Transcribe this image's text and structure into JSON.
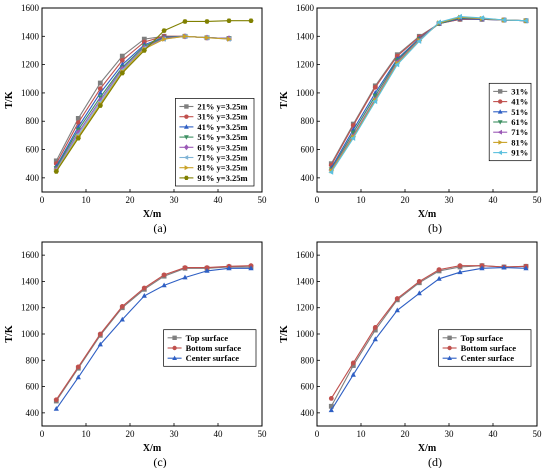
{
  "charts": [
    {
      "type": "line",
      "caption": "(a)",
      "xlabel": "X/m",
      "ylabel": "T/K",
      "xlim": [
        0,
        50
      ],
      "ylim": [
        300,
        1600
      ],
      "xticks": [
        0,
        10,
        20,
        30,
        40,
        50
      ],
      "yticks": [
        400,
        600,
        800,
        1000,
        1200,
        1400,
        1600
      ],
      "legend_position": "lower-right",
      "x": [
        3.25,
        8.25,
        13.25,
        18.25,
        23.25,
        27.75,
        32.5,
        37.5,
        42.5,
        47.5
      ],
      "series": [
        {
          "name": "21% y=3.25m",
          "color": "#7f7f7f",
          "marker": "square",
          "values": [
            520,
            820,
            1070,
            1260,
            1380,
            1400,
            1400,
            1390,
            1385,
            null
          ]
        },
        {
          "name": "31% y=3.25m",
          "color": "#c0504d",
          "marker": "circle",
          "values": [
            500,
            790,
            1030,
            1230,
            1360,
            1400,
            1400,
            1390,
            1385,
            null
          ]
        },
        {
          "name": "41% y=3.25m",
          "color": "#2e5fc4",
          "marker": "triangle-up",
          "values": [
            480,
            760,
            1000,
            1200,
            1340,
            1395,
            1400,
            1390,
            1385,
            null
          ]
        },
        {
          "name": "51% y=3.25m",
          "color": "#3d8f62",
          "marker": "triangle-down",
          "values": [
            470,
            740,
            970,
            1180,
            1330,
            1390,
            1400,
            1390,
            1385,
            null
          ]
        },
        {
          "name": "61% y=3.25m",
          "color": "#9b59b6",
          "marker": "diamond",
          "values": [
            460,
            720,
            950,
            1170,
            1320,
            1385,
            1400,
            1390,
            1385,
            null
          ]
        },
        {
          "name": "71% y=3.25m",
          "color": "#7fb3d5",
          "marker": "triangle-left",
          "values": [
            455,
            705,
            935,
            1160,
            1315,
            1380,
            1400,
            1390,
            1380,
            null
          ]
        },
        {
          "name": "81% y=3.25m",
          "color": "#c9a227",
          "marker": "triangle-right",
          "values": [
            450,
            690,
            920,
            1150,
            1310,
            1380,
            1400,
            1390,
            1380,
            null
          ]
        },
        {
          "name": "91% y=3.25m",
          "color": "#808000",
          "marker": "hexagon",
          "values": [
            445,
            680,
            910,
            1140,
            1300,
            1440,
            1505,
            1505,
            1510,
            1510
          ]
        }
      ]
    },
    {
      "type": "line",
      "caption": "(b)",
      "xlabel": "X/m",
      "ylabel": "T/K",
      "xlim": [
        0,
        50
      ],
      "ylim": [
        300,
        1600
      ],
      "xticks": [
        0,
        10,
        20,
        30,
        40,
        50
      ],
      "yticks": [
        400,
        600,
        800,
        1000,
        1200,
        1400,
        1600
      ],
      "legend_position": "center-right",
      "x": [
        3.25,
        8.25,
        13.25,
        18.25,
        23.25,
        27.75,
        32.5,
        37.5,
        42.5,
        47.5
      ],
      "series": [
        {
          "name": "31%",
          "color": "#7f7f7f",
          "marker": "square",
          "values": [
            500,
            780,
            1050,
            1270,
            1400,
            1490,
            1520,
            1520,
            1515,
            1510
          ]
        },
        {
          "name": "41%",
          "color": "#c0504d",
          "marker": "circle",
          "values": [
            490,
            770,
            1040,
            1260,
            1395,
            1490,
            1520,
            1520,
            1515,
            1510
          ]
        },
        {
          "name": "51%",
          "color": "#2e5fc4",
          "marker": "triangle-up",
          "values": [
            470,
            740,
            1000,
            1240,
            1385,
            1490,
            1525,
            1520,
            1515,
            1510
          ]
        },
        {
          "name": "61%",
          "color": "#3d8f62",
          "marker": "triangle-down",
          "values": [
            460,
            720,
            980,
            1230,
            1380,
            1490,
            1530,
            1525,
            1515,
            1510
          ]
        },
        {
          "name": "71%",
          "color": "#9b59b6",
          "marker": "triangle-left",
          "values": [
            455,
            700,
            960,
            1220,
            1375,
            1495,
            1535,
            1525,
            1515,
            1510
          ]
        },
        {
          "name": "81%",
          "color": "#c9a227",
          "marker": "triangle-right",
          "values": [
            450,
            690,
            950,
            1210,
            1370,
            1495,
            1535,
            1525,
            1515,
            1510
          ]
        },
        {
          "name": "91%",
          "color": "#5bc0de",
          "marker": "triangle-left",
          "values": [
            440,
            680,
            940,
            1200,
            1365,
            1500,
            1540,
            1530,
            1515,
            1510
          ]
        }
      ]
    },
    {
      "type": "line",
      "caption": "(c)",
      "xlabel": "X/m",
      "ylabel": "T/K",
      "xlim": [
        0,
        50
      ],
      "ylim": [
        300,
        1700
      ],
      "xticks": [
        0,
        10,
        20,
        30,
        40,
        50
      ],
      "yticks": [
        400,
        600,
        800,
        1000,
        1200,
        1400,
        1600
      ],
      "legend_position": "center-right",
      "x": [
        3.25,
        8.25,
        13.25,
        18.25,
        23.25,
        27.75,
        32.5,
        37.5,
        42.5,
        47.5
      ],
      "series": [
        {
          "name": "Top surface",
          "color": "#7f7f7f",
          "marker": "square",
          "values": [
            490,
            740,
            990,
            1200,
            1340,
            1440,
            1500,
            1500,
            1510,
            1510
          ]
        },
        {
          "name": "Bottom surface",
          "color": "#c0504d",
          "marker": "circle",
          "values": [
            500,
            750,
            1000,
            1210,
            1350,
            1450,
            1505,
            1505,
            1515,
            1520
          ]
        },
        {
          "name": "Center surface",
          "color": "#2e5fc4",
          "marker": "triangle-up",
          "values": [
            430,
            670,
            920,
            1110,
            1290,
            1370,
            1430,
            1480,
            1500,
            1500
          ]
        }
      ]
    },
    {
      "type": "line",
      "caption": "(d)",
      "xlabel": "X/m",
      "ylabel": "T/K",
      "xlim": [
        0,
        50
      ],
      "ylim": [
        300,
        1700
      ],
      "xticks": [
        0,
        10,
        20,
        30,
        40,
        50
      ],
      "yticks": [
        400,
        600,
        800,
        1000,
        1200,
        1400,
        1600
      ],
      "legend_position": "center-right",
      "x": [
        3.25,
        8.25,
        13.25,
        18.25,
        23.25,
        27.75,
        32.5,
        37.5,
        42.5,
        47.5
      ],
      "series": [
        {
          "name": "Top surface",
          "color": "#7f7f7f",
          "marker": "square",
          "values": [
            450,
            760,
            1030,
            1260,
            1390,
            1480,
            1510,
            1520,
            1510,
            1515
          ]
        },
        {
          "name": "Bottom surface",
          "color": "#c0504d",
          "marker": "circle",
          "values": [
            510,
            780,
            1050,
            1270,
            1400,
            1490,
            1520,
            1520,
            1510,
            1515
          ]
        },
        {
          "name": "Center surface",
          "color": "#2e5fc4",
          "marker": "triangle-up",
          "values": [
            420,
            690,
            960,
            1180,
            1310,
            1420,
            1470,
            1500,
            1505,
            1500
          ]
        }
      ]
    }
  ]
}
